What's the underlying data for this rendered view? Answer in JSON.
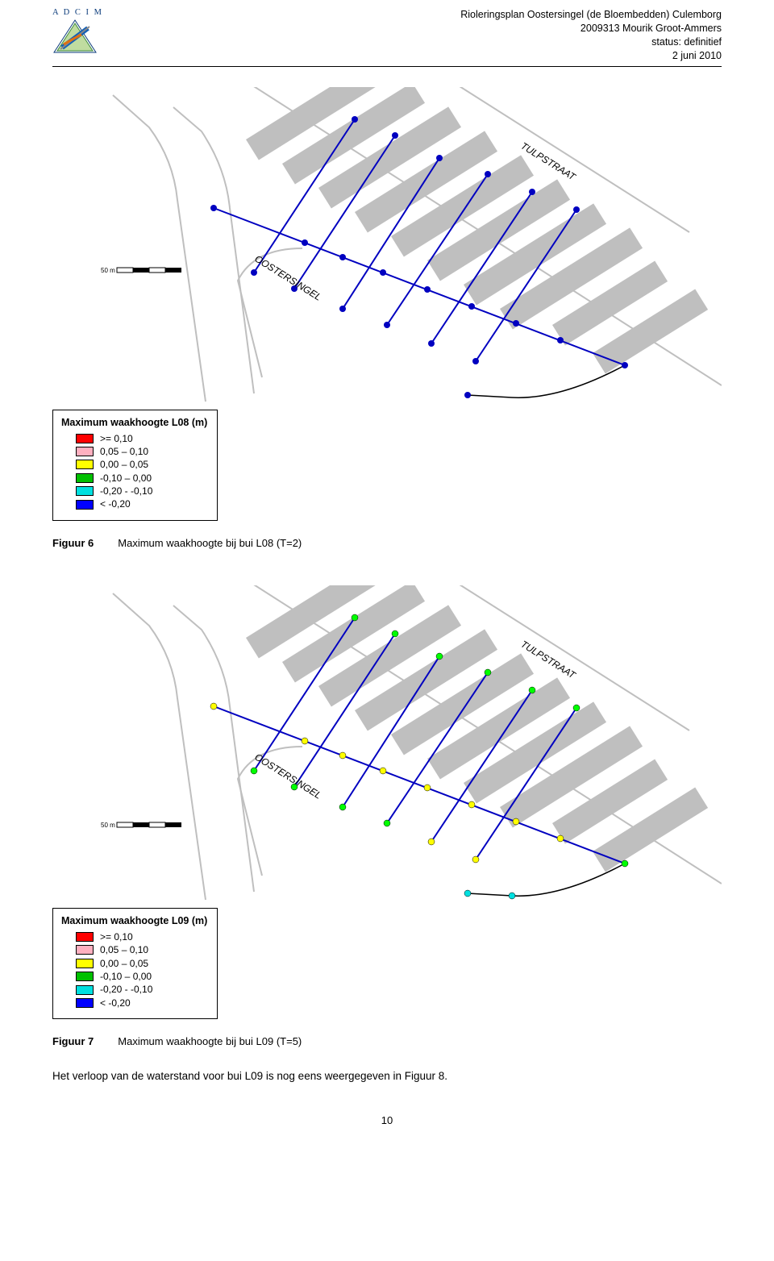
{
  "header": {
    "logo_letters": "A D C I M",
    "line1": "Rioleringsplan Oostersingel (de Bloembedden) Culemborg",
    "line2": "2009313 Mourik Groot-Ammers",
    "line3": "status: definitief",
    "line4": "2 juni 2010"
  },
  "page_number": "10",
  "map": {
    "street1": "TULPSTRAAT",
    "street2": "OOSTERSINGEL",
    "scale_label": "50 m",
    "outline_color": "#bfbfbf",
    "building_fill": "#bfbfbf",
    "pipe_color": "#0000c0",
    "node_r": 4,
    "fig1_node_fill": "#0000c0",
    "fig2_center_fill": "#ffff00",
    "fig2_end_fill": "#00ff00",
    "fig2_cyan_fill": "#00e0e0"
  },
  "legends": [
    {
      "title": "Maximum waakhoogte L08 (m)",
      "items": [
        {
          "color": "#ff0000",
          "label": ">= 0,10"
        },
        {
          "color": "#ffb0c0",
          "label": "0,05 – 0,10"
        },
        {
          "color": "#ffff00",
          "label": "0,00 – 0,05"
        },
        {
          "color": "#00c000",
          "label": "-0,10 – 0,00"
        },
        {
          "color": "#00e0e0",
          "label": "-0,20 - -0,10"
        },
        {
          "color": "#0000ff",
          "label": "< -0,20"
        }
      ]
    },
    {
      "title": "Maximum waakhoogte L09 (m)",
      "items": [
        {
          "color": "#ff0000",
          "label": ">= 0,10"
        },
        {
          "color": "#ffb0c0",
          "label": "0,05 – 0,10"
        },
        {
          "color": "#ffff00",
          "label": "0,00 – 0,05"
        },
        {
          "color": "#00c000",
          "label": "-0,10 – 0,00"
        },
        {
          "color": "#00e0e0",
          "label": "-0,20 - -0,10"
        },
        {
          "color": "#0000ff",
          "label": "< -0,20"
        }
      ]
    }
  ],
  "captions": [
    {
      "label": "Figuur 6",
      "text": "Maximum waakhoogte bij bui L08 (T=2)"
    },
    {
      "label": "Figuur 7",
      "text": "Maximum waakhoogte bij bui L09 (T=5)"
    }
  ],
  "body_paragraph": "Het verloop van de waterstand voor bui L09 is nog eens weergegeven in Figuur 8."
}
